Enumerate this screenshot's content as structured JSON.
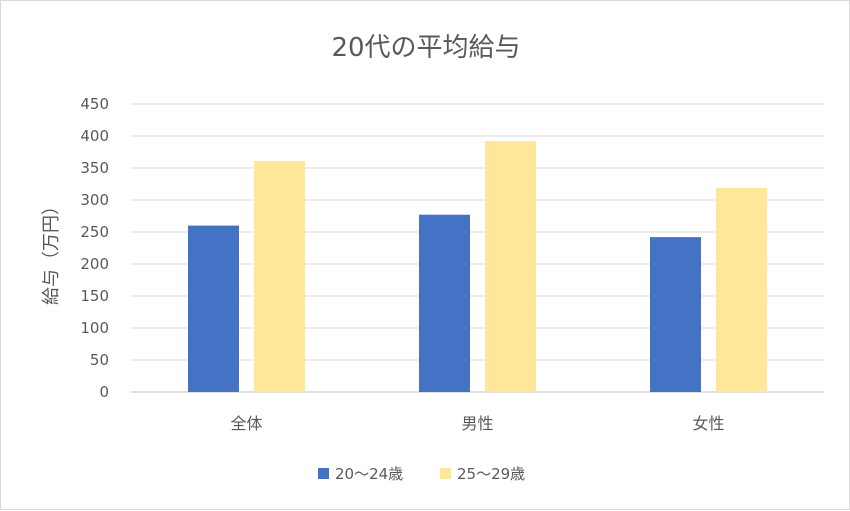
{
  "chart_data": {
    "type": "bar",
    "title": "20代の平均給与",
    "xlabel": "",
    "ylabel": "給与（万円）",
    "categories": [
      "全体",
      "男性",
      "女性"
    ],
    "series": [
      {
        "name": "20〜24歳",
        "values": [
          260,
          277,
          242
        ],
        "color": "#4472c4"
      },
      {
        "name": "25〜29歳",
        "values": [
          361,
          392,
          319
        ],
        "color": "#ffe699"
      }
    ],
    "ylim": [
      0,
      450
    ],
    "yticks": [
      0,
      50,
      100,
      150,
      200,
      250,
      300,
      350,
      400,
      450
    ],
    "grid": true,
    "legend_position": "bottom"
  }
}
